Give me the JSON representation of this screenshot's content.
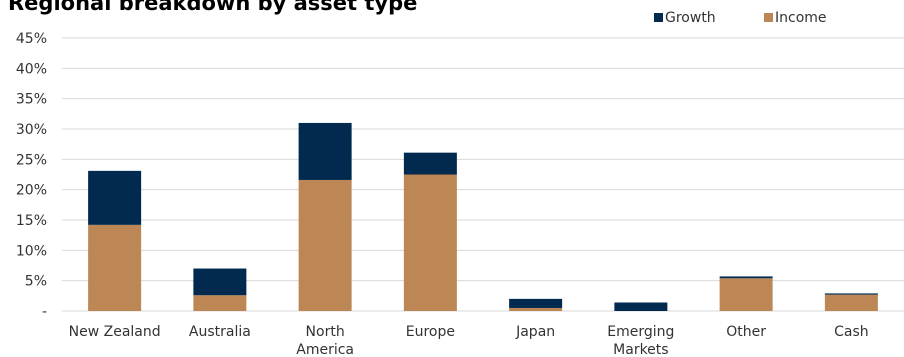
{
  "chart_data": {
    "type": "bar",
    "stacked": true,
    "title": "Regional breakdown by asset type",
    "categories": [
      [
        "New Zealand"
      ],
      [
        "Australia"
      ],
      [
        "North",
        "America"
      ],
      [
        "Europe"
      ],
      [
        "Japan"
      ],
      [
        "Emerging",
        "Markets"
      ],
      [
        "Other"
      ],
      [
        "Cash"
      ]
    ],
    "series": [
      {
        "name": "Income",
        "color": "#BC8655",
        "values": [
          14.2,
          2.6,
          21.6,
          22.5,
          0.5,
          0.0,
          5.4,
          2.7
        ]
      },
      {
        "name": "Growth",
        "color": "#012A4E",
        "values": [
          8.9,
          4.4,
          9.4,
          3.6,
          1.5,
          1.4,
          0.3,
          0.2
        ]
      }
    ],
    "legend": [
      "Growth",
      "Income"
    ],
    "legend_position": "top-right",
    "ylim": [
      0,
      45
    ],
    "y_ticks": [
      "-",
      "5%",
      "10%",
      "15%",
      "20%",
      "25%",
      "30%",
      "35%",
      "40%",
      "45%"
    ],
    "grid": true
  }
}
